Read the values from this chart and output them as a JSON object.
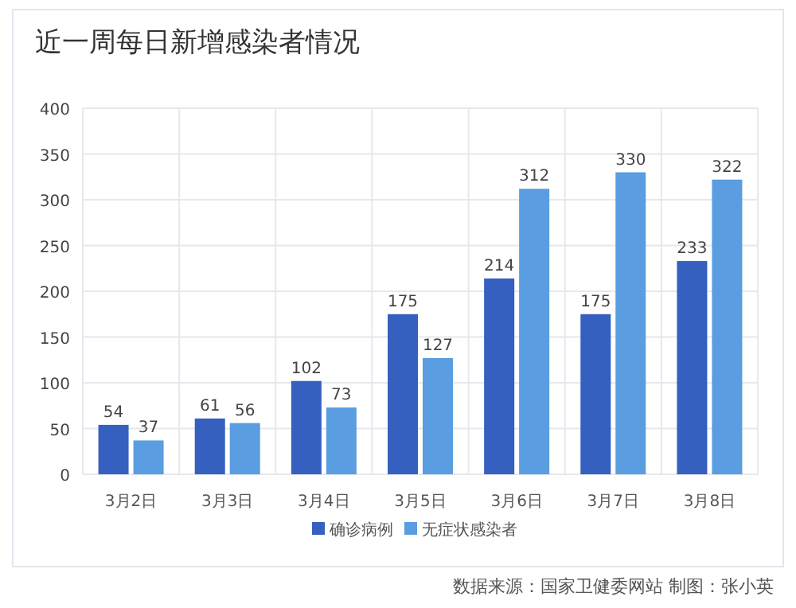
{
  "chart_data": {
    "type": "bar",
    "title": "近一周每日新增感染者情况",
    "categories": [
      "3月2日",
      "3月3日",
      "3月4日",
      "3月5日",
      "3月6日",
      "3月7日",
      "3月8日"
    ],
    "series": [
      {
        "name": "确诊病例",
        "color": "#3560c0",
        "values": [
          54,
          61,
          102,
          175,
          214,
          175,
          233
        ]
      },
      {
        "name": "无症状感染者",
        "color": "#5a9de0",
        "values": [
          37,
          56,
          73,
          127,
          312,
          330,
          322
        ]
      }
    ],
    "ylim": [
      0,
      400
    ],
    "yticks": [
      0,
      50,
      100,
      150,
      200,
      250,
      300,
      350,
      400
    ],
    "grid": true,
    "legend": "bottom",
    "data_labels": true,
    "annotations": [
      "数据来源：国家卫健委网站  制图：张小英"
    ]
  }
}
